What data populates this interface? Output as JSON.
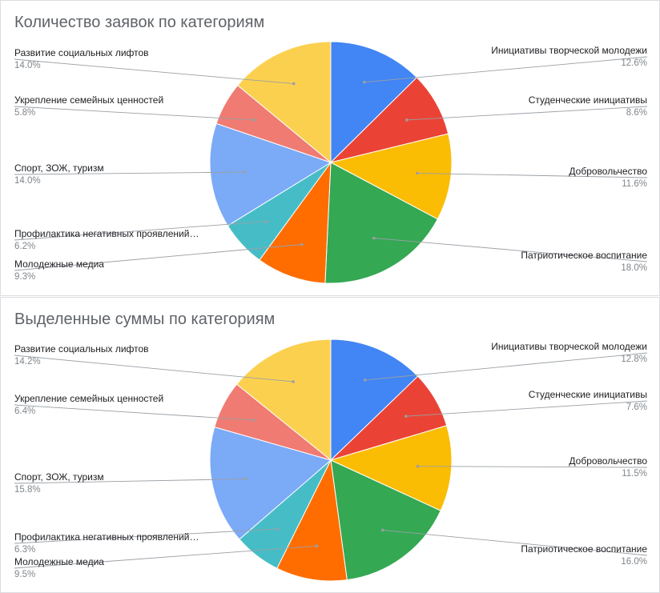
{
  "chart_data": [
    {
      "type": "pie",
      "title": "Количество заявок по категориям",
      "categories": [
        "Инициативы творческой молодежи",
        "Студенческие инициативы",
        "Добровольчество",
        "Патриотическое воспитание",
        "Молодежные медиа",
        "Профилактика негативных проявлений…",
        "Спорт, ЗОЖ, туризм",
        "Укрепление семейных ценностей",
        "Развитие социальных лифтов"
      ],
      "values": [
        12.6,
        8.6,
        11.6,
        18.0,
        9.3,
        6.2,
        14.0,
        5.8,
        14.0
      ],
      "value_labels": [
        "12.6%",
        "8.6%",
        "11.6%",
        "18.0%",
        "9.3%",
        "6.2%",
        "14.0%",
        "5.8%",
        "14.0%"
      ],
      "colors": [
        "#4285f4",
        "#ea4335",
        "#fbbc04",
        "#34a853",
        "#ff6d01",
        "#46bdc6",
        "#7baaf7",
        "#f07b72",
        "#fcd04f"
      ],
      "legend": "labeled-slices"
    },
    {
      "type": "pie",
      "title": "Выделенные суммы по категориям",
      "categories": [
        "Инициативы творческой молодежи",
        "Студенческие инициативы",
        "Добровольчество",
        "Патриотическое воспитание",
        "Молодежные медиа",
        "Профилактика негативных проявлений…",
        "Спорт, ЗОЖ, туризм",
        "Укрепление семейных ценностей",
        "Развитие социальных лифтов"
      ],
      "values": [
        12.8,
        7.6,
        11.5,
        16.0,
        9.5,
        6.3,
        15.8,
        6.4,
        14.2
      ],
      "value_labels": [
        "12.8%",
        "7.6%",
        "11.5%",
        "16.0%",
        "9.5%",
        "6.3%",
        "15.8%",
        "6.4%",
        "14.2%"
      ],
      "colors": [
        "#4285f4",
        "#ea4335",
        "#fbbc04",
        "#34a853",
        "#ff6d01",
        "#46bdc6",
        "#7baaf7",
        "#f07b72",
        "#fcd04f"
      ],
      "legend": "labeled-slices"
    }
  ]
}
